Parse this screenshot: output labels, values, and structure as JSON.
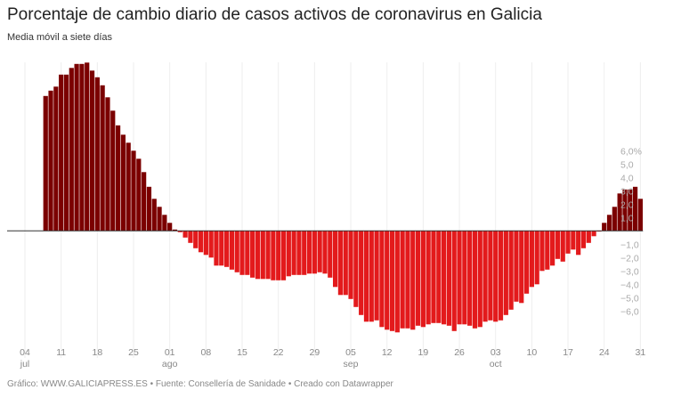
{
  "title": "Porcentaje de cambio diario de casos activos de coronavirus en Galicia",
  "subtitle": "Media móvil a siete días",
  "footer": "Gráfico: WWW.GALICIAPRESS.ES • Fuente: Consellería de Sanidade • Creado con Datawrapper",
  "chart_data": {
    "type": "bar",
    "title": "Porcentaje de cambio diario de casos activos de coronavirus en Galicia",
    "subtitle": "Media móvil a siete días",
    "ylabel": "",
    "xlabel": "",
    "ylim": [
      -6.5,
      6.5
    ],
    "grid": "vertical",
    "colors": {
      "positive": "#7b0000",
      "negative": "#e31a1c",
      "grid": "#eeeeee",
      "zero": "#333333"
    },
    "y_ticks": [
      {
        "value": 6,
        "label": "6,0%"
      },
      {
        "value": 5,
        "label": "5,0"
      },
      {
        "value": 4,
        "label": "4,0"
      },
      {
        "value": 3,
        "label": "3,0"
      },
      {
        "value": 2,
        "label": "2,0"
      },
      {
        "value": 1,
        "label": "1,0"
      },
      {
        "value": -1,
        "label": "−1,0"
      },
      {
        "value": -2,
        "label": "−2,0"
      },
      {
        "value": -3,
        "label": "−3,0"
      },
      {
        "value": -4,
        "label": "−4,0"
      },
      {
        "value": -5,
        "label": "−5,0"
      },
      {
        "value": -6,
        "label": "−6,0"
      }
    ],
    "x_ticks": [
      {
        "month": "jul",
        "day": 4,
        "label": "04",
        "sublabel": "jul"
      },
      {
        "month": "jul",
        "day": 11,
        "label": "11",
        "sublabel": ""
      },
      {
        "month": "jul",
        "day": 18,
        "label": "18",
        "sublabel": ""
      },
      {
        "month": "jul",
        "day": 25,
        "label": "25",
        "sublabel": ""
      },
      {
        "month": "ago",
        "day": 1,
        "label": "01",
        "sublabel": "ago"
      },
      {
        "month": "ago",
        "day": 8,
        "label": "08",
        "sublabel": ""
      },
      {
        "month": "ago",
        "day": 15,
        "label": "15",
        "sublabel": ""
      },
      {
        "month": "ago",
        "day": 22,
        "label": "22",
        "sublabel": ""
      },
      {
        "month": "ago",
        "day": 29,
        "label": "29",
        "sublabel": ""
      },
      {
        "month": "sep",
        "day": 5,
        "label": "05",
        "sublabel": "sep"
      },
      {
        "month": "sep",
        "day": 12,
        "label": "12",
        "sublabel": ""
      },
      {
        "month": "sep",
        "day": 19,
        "label": "19",
        "sublabel": ""
      },
      {
        "month": "sep",
        "day": 26,
        "label": "26",
        "sublabel": ""
      },
      {
        "month": "oct",
        "day": 3,
        "label": "03",
        "sublabel": "oct"
      },
      {
        "month": "oct",
        "day": 10,
        "label": "10",
        "sublabel": ""
      },
      {
        "month": "oct",
        "day": 17,
        "label": "17",
        "sublabel": ""
      },
      {
        "month": "oct",
        "day": 24,
        "label": "24",
        "sublabel": ""
      },
      {
        "month": "oct",
        "day": 31,
        "label": "31",
        "sublabel": ""
      }
    ],
    "months": [
      {
        "month": "jul",
        "values": [
          0,
          0,
          0,
          0,
          0,
          0,
          0,
          10.1,
          10.5,
          10.8,
          11.7,
          11.7,
          12.2,
          12.5,
          12.5,
          12.6,
          12.0,
          11.5,
          10.9,
          10.0,
          9.0,
          7.9,
          7.2,
          6.6,
          6.0,
          5.4,
          4.4,
          3.3,
          2.4,
          1.8,
          1.2
        ]
      },
      {
        "month": "ago",
        "values": [
          0.6,
          0.1,
          -0.1,
          -0.5,
          -0.9,
          -1.3,
          -1.6,
          -1.8,
          -2.0,
          -2.6,
          -2.6,
          -2.7,
          -2.9,
          -3.1,
          -3.3,
          -3.3,
          -3.5,
          -3.6,
          -3.6,
          -3.6,
          -3.7,
          -3.7,
          -3.7,
          -3.4,
          -3.3,
          -3.3,
          -3.3,
          -3.2,
          -3.2,
          -3.1,
          -3.2
        ]
      },
      {
        "month": "sep",
        "values": [
          -3.5,
          -4.2,
          -4.8,
          -4.8,
          -5.1,
          -5.7,
          -6.3,
          -6.8,
          -6.8,
          -6.7,
          -7.2,
          -7.4,
          -7.5,
          -7.6,
          -7.3,
          -7.3,
          -7.4,
          -7.1,
          -7.2,
          -7.0,
          -6.9,
          -6.9,
          -7.0,
          -7.1,
          -7.5,
          -7.0,
          -7.0,
          -7.1,
          -7.3,
          -7.2
        ]
      },
      {
        "month": "oct",
        "values": [
          -6.8,
          -6.7,
          -6.8,
          -6.7,
          -6.3,
          -5.9,
          -5.3,
          -5.4,
          -4.7,
          -4.2,
          -4.0,
          -3.0,
          -2.9,
          -2.6,
          -2.1,
          -2.3,
          -1.7,
          -1.4,
          -1.8,
          -1.3,
          -0.9,
          -0.4,
          -0.05,
          0.6,
          1.2,
          1.8,
          2.8,
          3.1,
          3.1,
          3.3,
          2.4
        ]
      }
    ]
  }
}
